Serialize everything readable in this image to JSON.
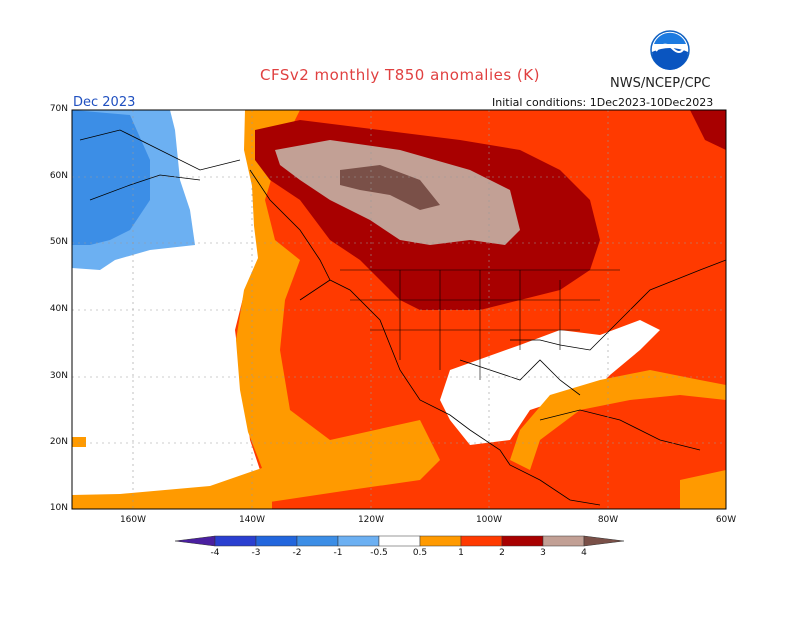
{
  "title": "CFSv2 monthly T850 anomalies (K)",
  "agency": "NWS/NCEP/CPC",
  "logo_text": "NOAA",
  "month": "Dec 2023",
  "initial_conditions": "Initial conditions: 1Dec2023-10Dec2023",
  "lat_labels": [
    "70N",
    "60N",
    "50N",
    "40N",
    "30N",
    "20N",
    "10N"
  ],
  "lon_labels": [
    "160W",
    "140W",
    "120W",
    "100W",
    "80W",
    "60W"
  ],
  "colorbar": {
    "labels": [
      "-4",
      "-3",
      "-2",
      "-1",
      "-0.5",
      "0.5",
      "1",
      "2",
      "3",
      "4"
    ],
    "colors": [
      "#4a1fa0",
      "#2a3fd0",
      "#2266dd",
      "#3c8ee6",
      "#6cb0f2",
      "#ffffff",
      "#ff9a00",
      "#ff3a00",
      "#a80000",
      "#c2a095",
      "#7a5048"
    ]
  },
  "colors": {
    "land_border": "#000000",
    "grid": "#999999"
  }
}
